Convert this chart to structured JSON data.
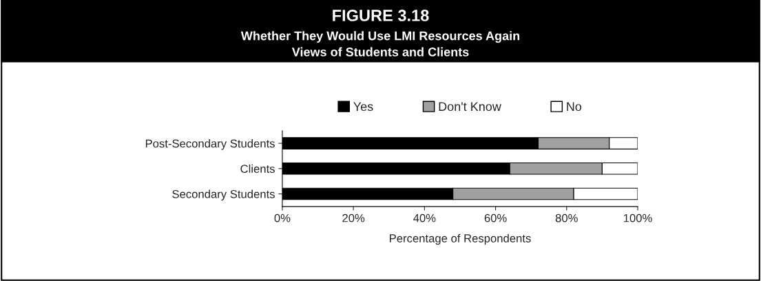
{
  "chart_data": {
    "type": "bar",
    "orientation": "horizontal",
    "stacked": true,
    "title": "FIGURE 3.18",
    "subtitle": "Whether They Would Use LMI Resources Again\nViews of Students and Clients",
    "xlabel": "Percentage of Respondents",
    "categories": [
      "Post-Secondary Students",
      "Clients",
      "Secondary Students"
    ],
    "series": [
      {
        "name": "Yes",
        "color": "#000000",
        "values": [
          72,
          64,
          48
        ]
      },
      {
        "name": "Don't Know",
        "color": "#a0a0a0",
        "values": [
          20,
          26,
          34
        ]
      },
      {
        "name": "No",
        "color": "#ffffff",
        "values": [
          8,
          10,
          18
        ]
      }
    ],
    "xlim": [
      0,
      100
    ],
    "xticks": [
      {
        "value": 0,
        "label": "0%"
      },
      {
        "value": 20,
        "label": "20%"
      },
      {
        "value": 40,
        "label": "40%"
      },
      {
        "value": 60,
        "label": "60%"
      },
      {
        "value": 80,
        "label": "80%"
      },
      {
        "value": 100,
        "label": "100%"
      }
    ],
    "grid": false,
    "legend": "top"
  }
}
